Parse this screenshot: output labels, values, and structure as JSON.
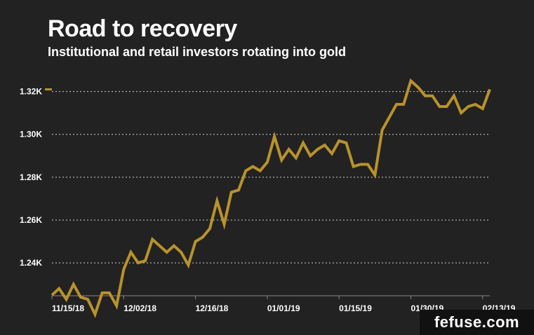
{
  "title": "Road to recovery",
  "subtitle": "Institutional and retail investors rotating into gold",
  "watermark": "fefuse.com",
  "chart_data": {
    "type": "line",
    "title": "Road to recovery",
    "subtitle": "Institutional and retail investors rotating into gold",
    "xlabel": "",
    "ylabel": "",
    "y_ticks": [
      1240,
      1260,
      1280,
      1300,
      1320
    ],
    "y_tick_labels": [
      "1.24K",
      "1.26K",
      "1.28K",
      "1.30K",
      "1.32K"
    ],
    "ylim": [
      1225,
      1330
    ],
    "x_tick_labels": [
      "11/15/18",
      "12/02/18",
      "12/16/18",
      "01/01/19",
      "01/15/19",
      "01/30/19",
      "02/13/19"
    ],
    "x_tick_index": [
      0,
      10,
      20,
      30,
      40,
      50,
      60
    ],
    "grid": "horizontal dotted",
    "line_color": "#b8922c",
    "series": [
      {
        "values": [
          1225,
          1228,
          1223,
          1230,
          1224,
          1223,
          1216,
          1226,
          1226,
          1220,
          1237,
          1245,
          1240,
          1241,
          1251,
          1248,
          1245,
          1248,
          1245,
          1239,
          1250,
          1252,
          1256,
          1269,
          1258,
          1273,
          1274,
          1283,
          1285,
          1283,
          1287,
          1299,
          1288,
          1293,
          1289,
          1296,
          1290,
          1293,
          1295,
          1291,
          1297,
          1296,
          1285,
          1286,
          1286,
          1281,
          1302,
          1308,
          1314,
          1314,
          1325,
          1322,
          1318,
          1318,
          1313,
          1313,
          1318,
          1310,
          1313,
          1314,
          1312,
          1321
        ]
      }
    ]
  }
}
